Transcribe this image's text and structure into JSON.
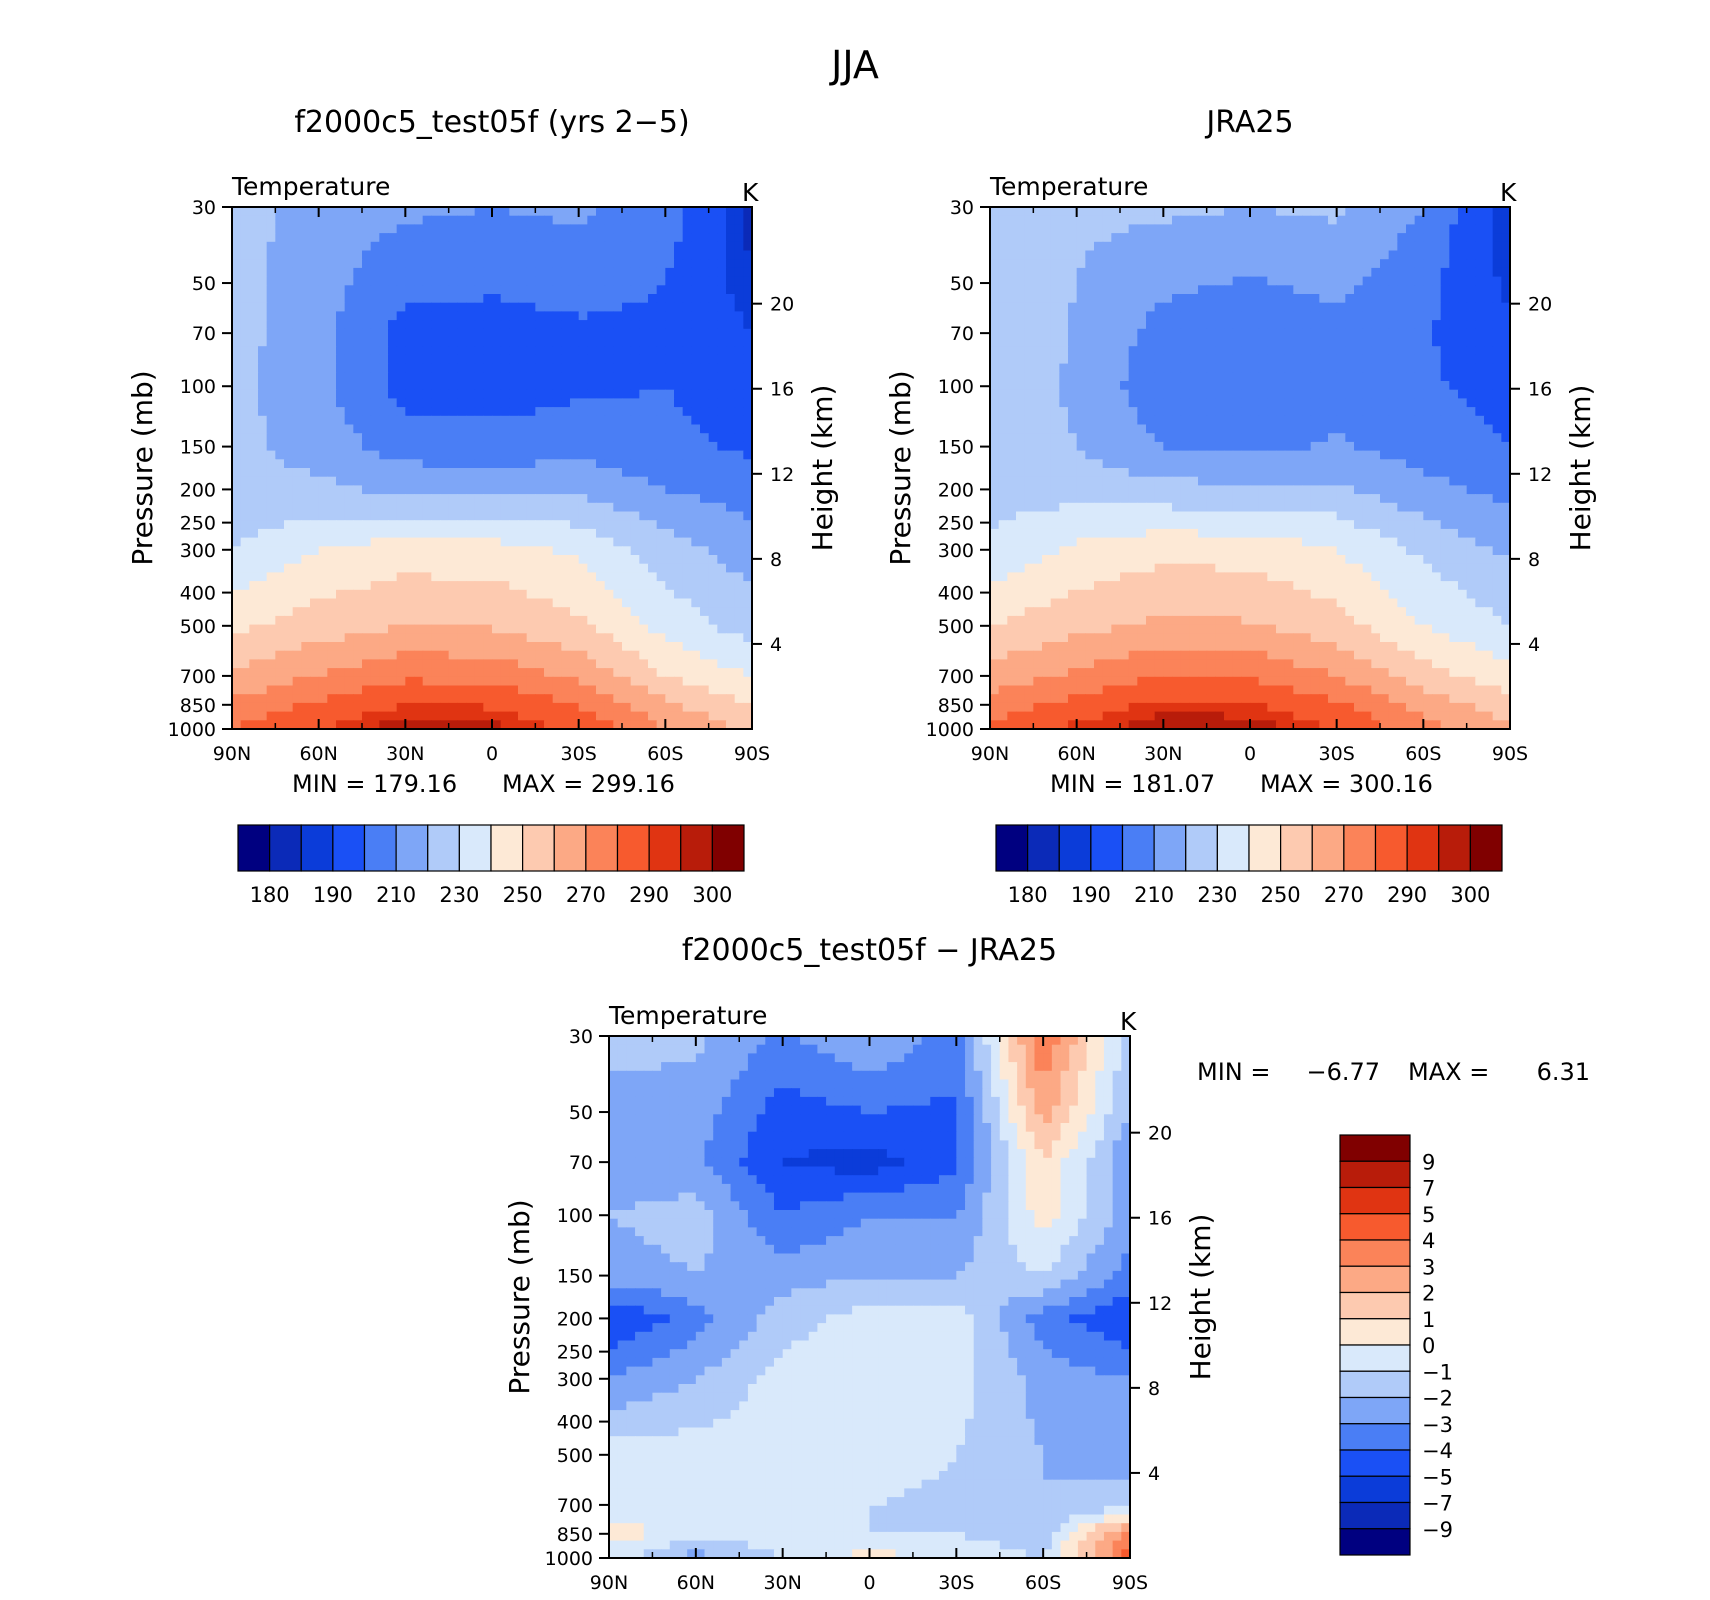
{
  "figure": {
    "title": "JJA"
  },
  "palette": {
    "temperature": [
      "#000080",
      "#0b2ab8",
      "#0b3cd9",
      "#1a50f5",
      "#4a7ef5",
      "#7ea6f7",
      "#b0cbf9",
      "#d9e9fb",
      "#fde9d6",
      "#fdcab0",
      "#fca985",
      "#fb8359",
      "#f75a2e",
      "#e03412",
      "#b81c0a",
      "#800000"
    ],
    "difference": [
      "#000080",
      "#0b2ab8",
      "#0b3cd9",
      "#1a50f5",
      "#4a7ef5",
      "#7ea6f7",
      "#b0cbf9",
      "#d9e9fb",
      "#fde9d6",
      "#fdcab0",
      "#fca985",
      "#fb8359",
      "#f75a2e",
      "#e03412",
      "#b81c0a",
      "#800000"
    ]
  },
  "chart_data": [
    {
      "type": "heatmap",
      "title": "f2000c5_test05f (yrs 2−5)",
      "left_label": "Temperature",
      "units": "K",
      "ylabel": "Pressure (mb)",
      "ylabel2": "Height (km)",
      "xticks": [
        "90N",
        "60N",
        "30N",
        "0",
        "30S",
        "60S",
        "90S"
      ],
      "yticks": [
        "30",
        "50",
        "70",
        "100",
        "150",
        "200",
        "250",
        "300",
        "400",
        "500",
        "700",
        "850",
        "1000"
      ],
      "height_ticks": [
        "20",
        "16",
        "12",
        "8",
        "4"
      ],
      "min_text": "MIN = 179.16",
      "max_text": "MAX = 299.16",
      "colorbar": {
        "orientation": "horizontal",
        "labels": [
          "180",
          "190",
          "210",
          "230",
          "250",
          "270",
          "290",
          "300"
        ]
      },
      "field": {
        "x": [
          90,
          60,
          30,
          0,
          -30,
          -60,
          -90
        ],
        "y": [
          30,
          50,
          70,
          100,
          150,
          200,
          300,
          500,
          700,
          850,
          1000
        ],
        "values": [
          [
            225,
            215,
            212,
            210,
            212,
            205,
            182
          ],
          [
            224,
            214,
            203,
            202,
            204,
            200,
            186
          ],
          [
            224,
            213,
            196,
            195,
            198,
            198,
            190
          ],
          [
            223,
            213,
            196,
            195,
            198,
            200,
            194
          ],
          [
            223,
            216,
            205,
            204,
            206,
            203,
            198
          ],
          [
            222,
            222,
            218,
            217,
            218,
            210,
            205
          ],
          [
            230,
            240,
            245,
            244,
            238,
            225,
            215
          ],
          [
            248,
            255,
            260,
            259,
            252,
            236,
            225
          ],
          [
            262,
            270,
            278,
            277,
            268,
            250,
            240
          ],
          [
            272,
            282,
            290,
            289,
            280,
            262,
            250
          ],
          [
            280,
            290,
            299,
            298,
            288,
            270,
            258
          ]
        ]
      }
    },
    {
      "type": "heatmap",
      "title": "JRA25",
      "left_label": "Temperature",
      "units": "K",
      "ylabel": "Pressure (mb)",
      "ylabel2": "Height (km)",
      "xticks": [
        "90N",
        "60N",
        "30N",
        "0",
        "30S",
        "60S",
        "90S"
      ],
      "yticks": [
        "30",
        "50",
        "70",
        "100",
        "150",
        "200",
        "250",
        "300",
        "400",
        "500",
        "700",
        "850",
        "1000"
      ],
      "height_ticks": [
        "20",
        "16",
        "12",
        "8",
        "4"
      ],
      "min_text": "MIN = 181.07",
      "max_text": "MAX = 300.16",
      "colorbar": {
        "orientation": "horizontal",
        "labels": [
          "180",
          "190",
          "210",
          "230",
          "250",
          "270",
          "290",
          "300"
        ]
      },
      "field": {
        "x": [
          90,
          60,
          30,
          0,
          -30,
          -60,
          -90
        ],
        "y": [
          30,
          50,
          70,
          100,
          150,
          200,
          300,
          500,
          700,
          850,
          1000
        ],
        "values": [
          [
            228,
            222,
            222,
            220,
            222,
            210,
            184
          ],
          [
            228,
            220,
            212,
            209,
            212,
            203,
            188
          ],
          [
            229,
            219,
            206,
            204,
            208,
            201,
            192
          ],
          [
            228,
            218,
            203,
            202,
            206,
            202,
            195
          ],
          [
            228,
            220,
            210,
            208,
            211,
            206,
            200
          ],
          [
            226,
            226,
            223,
            222,
            222,
            213,
            207
          ],
          [
            232,
            242,
            247,
            246,
            240,
            228,
            218
          ],
          [
            250,
            257,
            262,
            261,
            254,
            240,
            230
          ],
          [
            264,
            272,
            280,
            279,
            270,
            254,
            244
          ],
          [
            274,
            284,
            292,
            291,
            282,
            266,
            254
          ],
          [
            282,
            292,
            300,
            299,
            290,
            274,
            262
          ]
        ]
      }
    },
    {
      "type": "heatmap",
      "title": "f2000c5_test05f − JRA25",
      "left_label": "Temperature",
      "units": "K",
      "ylabel": "Pressure (mb)",
      "ylabel2": "Height (km)",
      "xticks": [
        "90N",
        "60N",
        "30N",
        "0",
        "30S",
        "60S",
        "90S"
      ],
      "yticks": [
        "30",
        "50",
        "70",
        "100",
        "150",
        "200",
        "250",
        "300",
        "400",
        "500",
        "700",
        "850",
        "1000"
      ],
      "height_ticks": [
        "20",
        "16",
        "12",
        "8",
        "4"
      ],
      "min_text": "MIN =",
      "min_value": "−6.77",
      "max_text": "MAX =",
      "max_value": "6.31",
      "colorbar": {
        "orientation": "vertical",
        "labels": [
          "9",
          "7",
          "5",
          "4",
          "3",
          "2",
          "1",
          "0",
          "−1",
          "−2",
          "−3",
          "−4",
          "−5",
          "−7",
          "−9"
        ]
      },
      "field": {
        "x": [
          90,
          60,
          30,
          0,
          -30,
          -60,
          -90
        ],
        "y": [
          30,
          50,
          70,
          100,
          150,
          200,
          300,
          500,
          700,
          850,
          1000
        ],
        "values": [
          [
            -1.5,
            -1.8,
            -3.2,
            -2.0,
            -3.5,
            4.0,
            -1.5
          ],
          [
            -2.5,
            -2.5,
            -4.5,
            -4.0,
            -4.2,
            2.5,
            -2.0
          ],
          [
            -2.5,
            -2.8,
            -5.0,
            -5.5,
            -4.2,
            1.0,
            -3.0
          ],
          [
            -2.0,
            -1.5,
            -4.0,
            -3.0,
            -3.0,
            0.5,
            -2.5
          ],
          [
            -2.5,
            -2.0,
            -2.5,
            -2.0,
            -2.0,
            -1.0,
            -3.5
          ],
          [
            -5.0,
            -3.5,
            -1.5,
            -0.5,
            -0.5,
            -3.5,
            -5.0
          ],
          [
            -3.0,
            -2.0,
            -0.5,
            -0.5,
            -0.5,
            -2.5,
            -3.0
          ],
          [
            -0.5,
            -0.5,
            -0.5,
            -0.5,
            -1.0,
            -2.0,
            -2.5
          ],
          [
            -0.5,
            -0.5,
            -0.5,
            -1.0,
            -1.2,
            -2.0,
            -1.5
          ],
          [
            0.5,
            -0.5,
            -0.5,
            -1.0,
            -1.0,
            -1.5,
            3.5
          ],
          [
            -0.5,
            -2.5,
            -1.0,
            0.5,
            -0.5,
            -1.0,
            4.5
          ]
        ]
      }
    }
  ]
}
